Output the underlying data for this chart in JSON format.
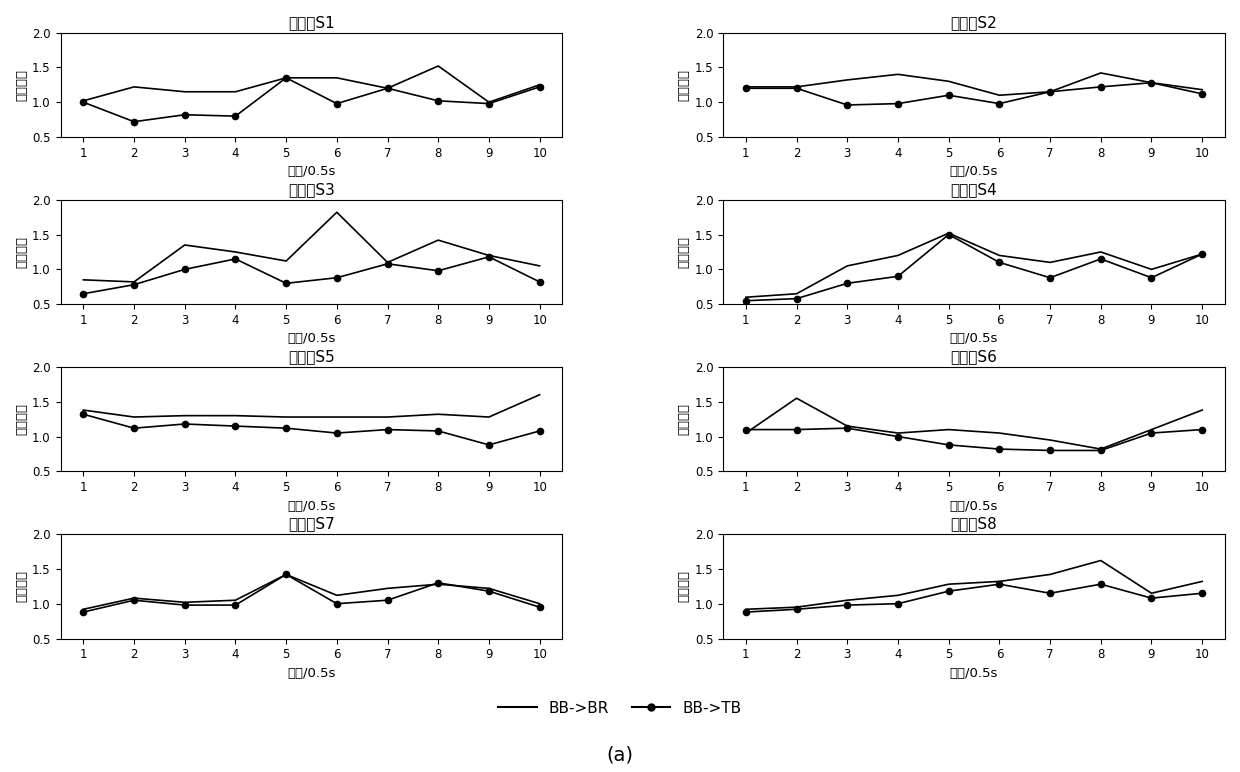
{
  "subjects": [
    "受试者S1",
    "受试者S2",
    "受试者S3",
    "受试者S4",
    "受试者S5",
    "受试者S6",
    "受试者S7",
    "受试者S8"
  ],
  "x": [
    1,
    2,
    3,
    4,
    5,
    6,
    7,
    8,
    9,
    10
  ],
  "BB_BR": [
    [
      1.02,
      1.22,
      1.15,
      1.15,
      1.35,
      1.35,
      1.2,
      1.52,
      1.0,
      1.25
    ],
    [
      1.22,
      1.22,
      1.32,
      1.4,
      1.3,
      1.1,
      1.15,
      1.42,
      1.28,
      1.18
    ],
    [
      0.85,
      0.82,
      1.35,
      1.25,
      1.12,
      1.82,
      1.1,
      1.42,
      1.2,
      1.05
    ],
    [
      0.6,
      0.65,
      1.05,
      1.2,
      1.52,
      1.2,
      1.1,
      1.25,
      1.0,
      1.22
    ],
    [
      1.38,
      1.28,
      1.3,
      1.3,
      1.28,
      1.28,
      1.28,
      1.32,
      1.28,
      1.6
    ],
    [
      1.05,
      1.55,
      1.15,
      1.05,
      1.1,
      1.05,
      0.95,
      0.82,
      1.1,
      1.38
    ],
    [
      0.92,
      1.08,
      1.02,
      1.05,
      1.42,
      1.12,
      1.22,
      1.28,
      1.22,
      1.0
    ],
    [
      0.92,
      0.95,
      1.05,
      1.12,
      1.28,
      1.32,
      1.42,
      1.62,
      1.15,
      1.32
    ]
  ],
  "BB_TB": [
    [
      1.0,
      0.72,
      0.82,
      0.8,
      1.35,
      0.98,
      1.2,
      1.02,
      0.98,
      1.22
    ],
    [
      1.2,
      1.2,
      0.96,
      0.98,
      1.1,
      0.98,
      1.15,
      1.22,
      1.28,
      1.12
    ],
    [
      0.65,
      0.78,
      1.0,
      1.15,
      0.8,
      0.88,
      1.08,
      0.98,
      1.18,
      0.82
    ],
    [
      0.55,
      0.58,
      0.8,
      0.9,
      1.5,
      1.1,
      0.88,
      1.15,
      0.88,
      1.22
    ],
    [
      1.32,
      1.12,
      1.18,
      1.15,
      1.12,
      1.05,
      1.1,
      1.08,
      0.88,
      1.08
    ],
    [
      1.1,
      1.1,
      1.12,
      1.0,
      0.88,
      0.82,
      0.8,
      0.8,
      1.05,
      1.1
    ],
    [
      0.88,
      1.05,
      0.98,
      0.98,
      1.42,
      1.0,
      1.05,
      1.3,
      1.18,
      0.95
    ],
    [
      0.88,
      0.92,
      0.98,
      1.0,
      1.18,
      1.28,
      1.15,
      1.28,
      1.08,
      1.15
    ]
  ],
  "ylabel": "传递熵値",
  "xlabel": "时间/0.5s",
  "ylim": [
    0.5,
    2.0
  ],
  "yticks": [
    0.5,
    1.0,
    1.5,
    2.0
  ],
  "xticks": [
    1,
    2,
    3,
    4,
    5,
    6,
    7,
    8,
    9,
    10
  ],
  "legend_labels": [
    "BB->BR",
    "BB->TB"
  ],
  "caption": "(a)",
  "line_color": "#000000",
  "line_width": 1.2,
  "marker_size": 4.5,
  "title_fontsize": 11,
  "label_fontsize": 9.5,
  "tick_fontsize": 8.5
}
